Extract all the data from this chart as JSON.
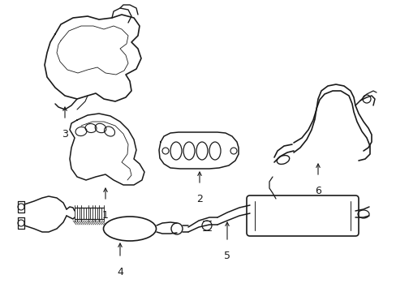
{
  "background_color": "#ffffff",
  "line_color": "#1a1a1a",
  "figsize": [
    4.89,
    3.6
  ],
  "dpi": 100,
  "xlim": [
    0,
    489
  ],
  "ylim": [
    0,
    360
  ],
  "components": {
    "label_fontsize": 9
  }
}
